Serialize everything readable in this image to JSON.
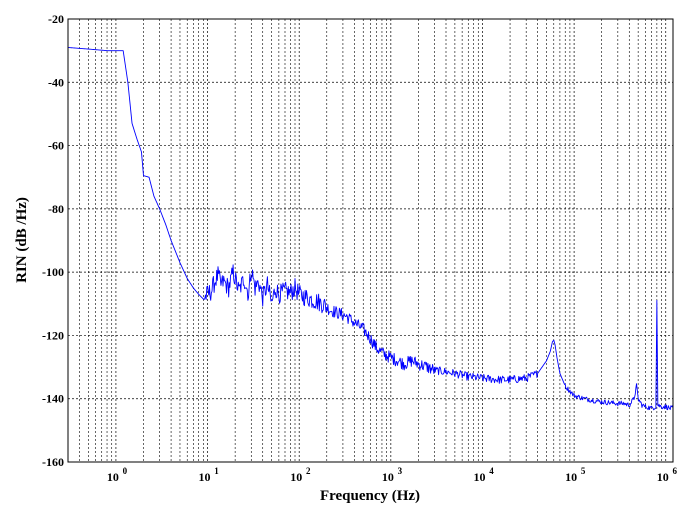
{
  "chart_data": {
    "type": "line",
    "x_scale": "log",
    "xlabel": "Frequency (Hz)",
    "ylabel": "RIN (dB /Hz)",
    "xlim": [
      0.3,
      1200000
    ],
    "ylim": [
      -160,
      -20
    ],
    "grid": true,
    "x_ticks": [
      {
        "base": "10",
        "exp": "0",
        "value": 1
      },
      {
        "base": "10",
        "exp": "1",
        "value": 10
      },
      {
        "base": "10",
        "exp": "2",
        "value": 100
      },
      {
        "base": "10",
        "exp": "3",
        "value": 1000
      },
      {
        "base": "10",
        "exp": "4",
        "value": 10000
      },
      {
        "base": "10",
        "exp": "5",
        "value": 100000
      },
      {
        "base": "10",
        "exp": "6",
        "value": 1000000
      }
    ],
    "y_ticks": [
      "-20",
      "-40",
      "-60",
      "-80",
      "-100",
      "-120",
      "-140",
      "-160"
    ],
    "series": [
      {
        "color": "#0000ff",
        "x": [
          0.3,
          0.5,
          0.8,
          1.2,
          1.35,
          1.5,
          1.7,
          1.9,
          2.0,
          2.3,
          2.6,
          3.0,
          3.5,
          4.0,
          5.0,
          6.0,
          7.0,
          8.0,
          9.0,
          10,
          11,
          12,
          13,
          14,
          15,
          17,
          19,
          22,
          25,
          28,
          30,
          33,
          36,
          40,
          45,
          50,
          55,
          60,
          70,
          80,
          90,
          100,
          120,
          150,
          180,
          220,
          270,
          330,
          400,
          500,
          600,
          700,
          850,
          1000,
          1200,
          1400,
          1700,
          2000,
          2500,
          3000,
          4000,
          5000,
          7000,
          10000,
          15000,
          20000,
          30000,
          40000,
          50000,
          55000,
          58000,
          60000,
          62000,
          65000,
          70000,
          80000,
          100000,
          130000,
          160000,
          200000,
          300000,
          350000,
          400000,
          450000,
          480000,
          500000,
          550000,
          600000,
          700000,
          780000,
          800000,
          820000,
          900000,
          1000000,
          1100000,
          1200000
        ],
        "y": [
          -29,
          -29.5,
          -30,
          -30,
          -40,
          -53,
          -58,
          -62,
          -69.5,
          -70,
          -76,
          -80,
          -85,
          -90,
          -97,
          -102,
          -105,
          -107,
          -108.5,
          -107,
          -106,
          -103,
          -101,
          -104,
          -103,
          -105,
          -100,
          -106,
          -102,
          -107,
          -99,
          -105,
          -103,
          -108,
          -104,
          -110,
          -105,
          -107,
          -106,
          -106.5,
          -105,
          -107,
          -108,
          -109,
          -110,
          -112,
          -113,
          -114,
          -116,
          -118,
          -121,
          -124,
          -126,
          -127,
          -128,
          -129,
          -128,
          -129,
          -130,
          -131,
          -131.5,
          -132,
          -133,
          -133.5,
          -134,
          -134,
          -133.5,
          -132,
          -128,
          -125,
          -122,
          -121.5,
          -123,
          -127,
          -132,
          -136,
          -139,
          -140,
          -140.5,
          -141,
          -141.5,
          -141.5,
          -142,
          -140,
          -136,
          -140,
          -142,
          -142.5,
          -143,
          -142.5,
          -109,
          -142,
          -142.5,
          -142.5,
          -143,
          -143
        ]
      }
    ]
  }
}
